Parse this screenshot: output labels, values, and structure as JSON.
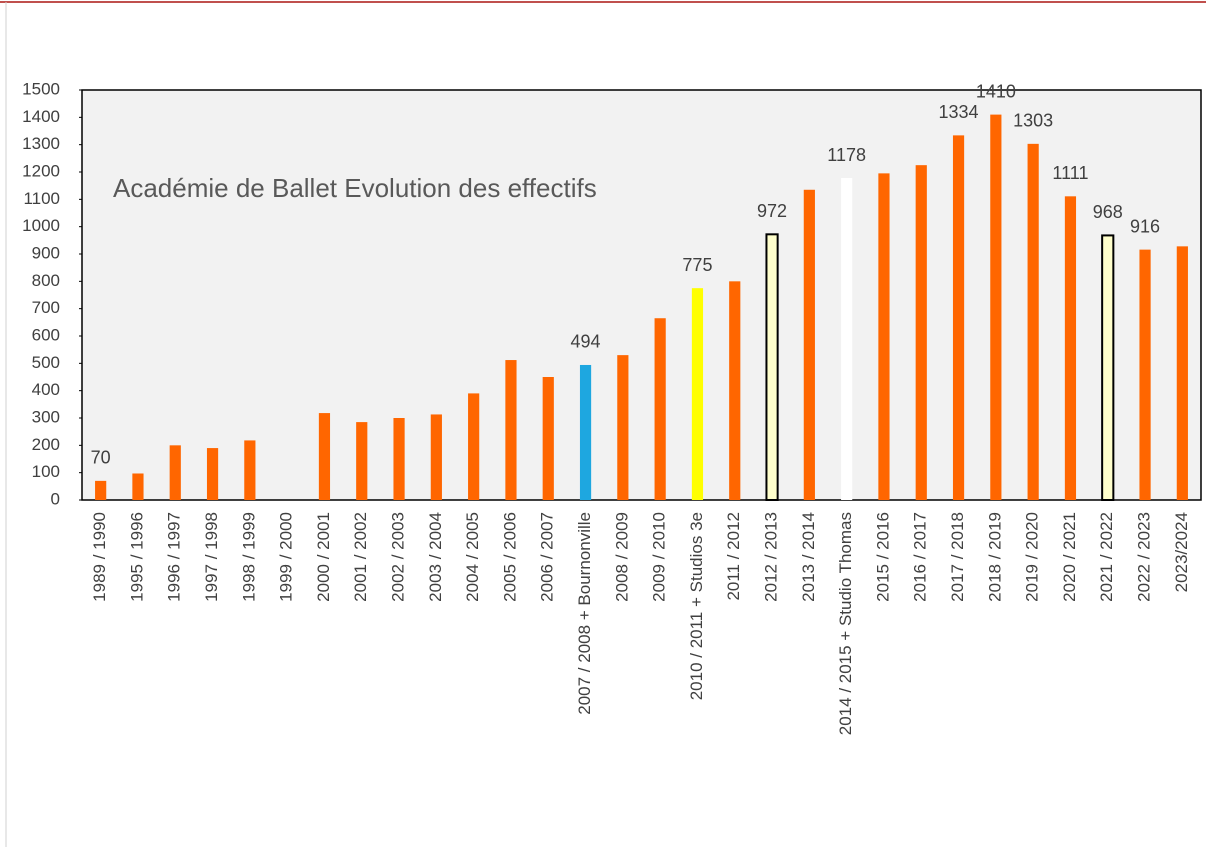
{
  "chart_data": {
    "type": "bar",
    "title": "Académie de Ballet Evolution des effectifs",
    "categories": [
      "1989 / 1990",
      "1995 / 1996",
      "1996 / 1997",
      "1997 / 1998",
      "1998 / 1999",
      "1999 / 2000",
      "2000 / 2001",
      "2001 / 2002",
      "2002 / 2003",
      "2003 / 2004",
      "2004 / 2005",
      "2005 / 2006",
      "2006 / 2007",
      "2007 / 2008 + Bournonville",
      "2008 / 2009",
      "2009 / 2010",
      "2010 / 2011 + Studios 3e",
      "2011 / 2012",
      "2012 / 2013",
      "2013 / 2014",
      "2014 / 2015 + Studio Thomas",
      "2015 / 2016",
      "2016 / 2017",
      "2017 / 2018",
      "2018 / 2019",
      "2019 / 2020",
      "2020 / 2021",
      "2021 / 2022",
      "2022 / 2023",
      "2023/2024"
    ],
    "values": [
      70,
      97,
      200,
      190,
      218,
      null,
      318,
      285,
      300,
      313,
      390,
      512,
      450,
      494,
      530,
      665,
      775,
      800,
      972,
      1135,
      1178,
      1195,
      1225,
      1334,
      1410,
      1303,
      1111,
      968,
      916,
      928
    ],
    "value_labels": [
      "70",
      null,
      null,
      null,
      null,
      null,
      null,
      null,
      null,
      null,
      null,
      null,
      null,
      "494",
      null,
      null,
      "775",
      null,
      "972",
      null,
      "1178",
      null,
      null,
      "1334",
      "1410",
      "1303",
      "1111",
      "968",
      "916",
      null
    ],
    "colors": [
      "#ff6600",
      "#ff6600",
      "#ff6600",
      "#ff6600",
      "#ff6600",
      "#ff6600",
      "#ff6600",
      "#ff6600",
      "#ff6600",
      "#ff6600",
      "#ff6600",
      "#ff6600",
      "#ff6600",
      "#1ea7e0",
      "#ff6600",
      "#ff6600",
      "#ffff00",
      "#ff6600",
      "#ffffcc",
      "#ff6600",
      "#ffffff",
      "#ff6600",
      "#ff6600",
      "#ff6600",
      "#ff6600",
      "#ff6600",
      "#ff6600",
      "#ffffcc",
      "#ff6600",
      "#ff6600"
    ],
    "edgecolors": [
      null,
      null,
      null,
      null,
      null,
      null,
      null,
      null,
      null,
      null,
      null,
      null,
      null,
      null,
      null,
      null,
      null,
      null,
      "#000000",
      null,
      null,
      null,
      null,
      null,
      null,
      null,
      null,
      "#000000",
      null,
      null
    ],
    "ylim": [
      0,
      1500
    ],
    "yticks": [
      0,
      100,
      200,
      300,
      400,
      500,
      600,
      700,
      800,
      900,
      1000,
      1100,
      1200,
      1300,
      1400,
      1500
    ],
    "grid": false
  }
}
